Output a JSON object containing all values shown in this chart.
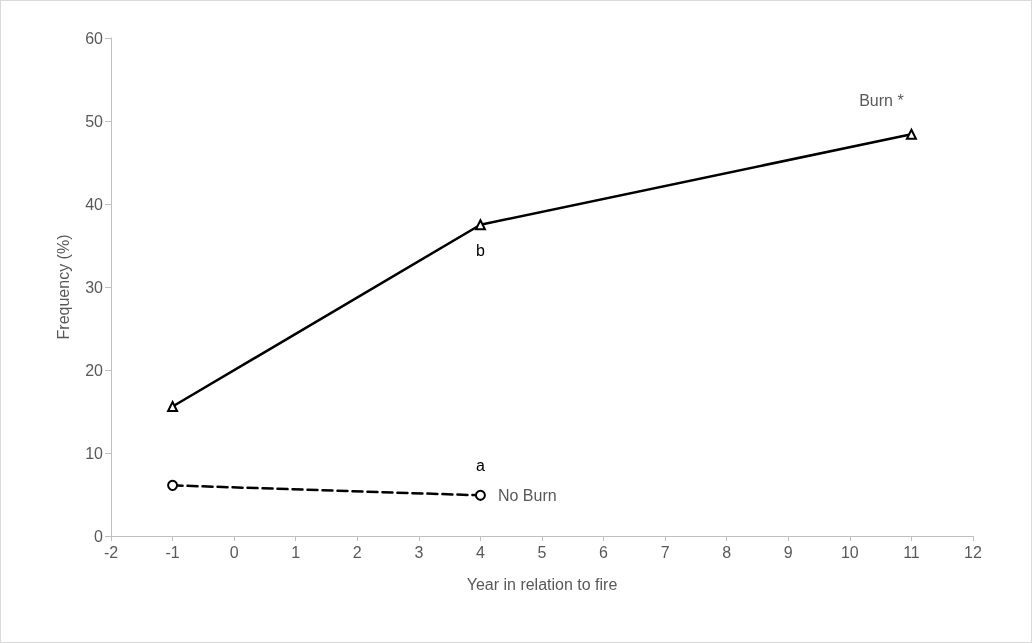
{
  "chart_data": {
    "type": "line",
    "xlabel": "Year in relation to fire",
    "ylabel": "Frequency (%)",
    "xlim": [
      -2,
      12
    ],
    "xticks": [
      -2,
      -1,
      0,
      1,
      2,
      3,
      4,
      5,
      6,
      7,
      8,
      9,
      10,
      11,
      12
    ],
    "ylim": [
      0,
      60
    ],
    "yticks": [
      0,
      10,
      20,
      30,
      40,
      50,
      60
    ],
    "grid": false,
    "legend": false,
    "series": [
      {
        "name": "Burn *",
        "color": "#000000",
        "x": [
          -1,
          4,
          11
        ],
        "values": [
          15.6,
          37.5,
          48.4
        ],
        "marker": "triangle",
        "line_style": "solid"
      },
      {
        "name": "No Burn",
        "color": "#000000",
        "x": [
          -1,
          4
        ],
        "values": [
          6.1,
          4.9
        ],
        "marker": "circle",
        "line_style": "dashed"
      }
    ],
    "annotations": [
      "b",
      "a"
    ]
  }
}
